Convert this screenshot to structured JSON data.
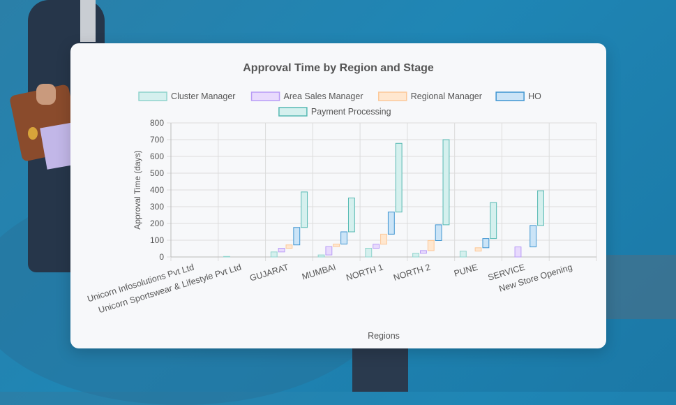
{
  "chart_data": {
    "type": "bar",
    "subtype": "floating-stacked-waterfall",
    "title": "Approval Time by Region and Stage",
    "xlabel": "Regions",
    "ylabel": "Approval Time (days)",
    "ylim": [
      0,
      800
    ],
    "yticks": [
      0,
      100,
      200,
      300,
      400,
      500,
      600,
      700,
      800
    ],
    "grid": true,
    "legend_position": "top",
    "categories": [
      "Unicorn Infosolutions Pvt Ltd",
      "Unicorn Sportswear & Lifestyle Pvt Ltd",
      "GUJARAT",
      "MUMBAI",
      "NORTH 1",
      "NORTH 2",
      "PUNE",
      "SERVICE",
      "New Store Opening"
    ],
    "series": [
      {
        "name": "Cluster Manager",
        "fill": "#d5f0ee",
        "stroke": "#8fd3cc",
        "ranges": [
          [
            0,
            0
          ],
          [
            0,
            3
          ],
          [
            0,
            30
          ],
          [
            0,
            12
          ],
          [
            0,
            52
          ],
          [
            0,
            22
          ],
          [
            0,
            35
          ],
          [
            0,
            0
          ],
          [
            0,
            0
          ]
        ]
      },
      {
        "name": "Area Sales Manager",
        "fill": "#e8dafd",
        "stroke": "#b99cf6",
        "ranges": [
          [
            0,
            0
          ],
          [
            3,
            3
          ],
          [
            30,
            52
          ],
          [
            12,
            62
          ],
          [
            52,
            76
          ],
          [
            22,
            38
          ],
          [
            35,
            35
          ],
          [
            0,
            60
          ],
          [
            0,
            0
          ]
        ]
      },
      {
        "name": "Regional Manager",
        "fill": "#ffe7cf",
        "stroke": "#fcc99a",
        "ranges": [
          [
            0,
            0
          ],
          [
            3,
            3
          ],
          [
            52,
            72
          ],
          [
            62,
            77
          ],
          [
            76,
            136
          ],
          [
            38,
            98
          ],
          [
            35,
            55
          ],
          [
            60,
            60
          ],
          [
            0,
            0
          ]
        ]
      },
      {
        "name": "HO",
        "fill": "#cbe4f7",
        "stroke": "#3f95d1",
        "ranges": [
          [
            0,
            0
          ],
          [
            3,
            3
          ],
          [
            72,
            176
          ],
          [
            77,
            150
          ],
          [
            136,
            268
          ],
          [
            98,
            192
          ],
          [
            55,
            110
          ],
          [
            60,
            188
          ],
          [
            0,
            0
          ]
        ]
      },
      {
        "name": "Payment Processing",
        "fill": "#d5f0ee",
        "stroke": "#56b9b3",
        "ranges": [
          [
            0,
            0
          ],
          [
            3,
            3
          ],
          [
            176,
            388
          ],
          [
            150,
            352
          ],
          [
            268,
            678
          ],
          [
            192,
            700
          ],
          [
            110,
            325
          ],
          [
            188,
            395
          ],
          [
            0,
            0
          ]
        ]
      }
    ]
  }
}
